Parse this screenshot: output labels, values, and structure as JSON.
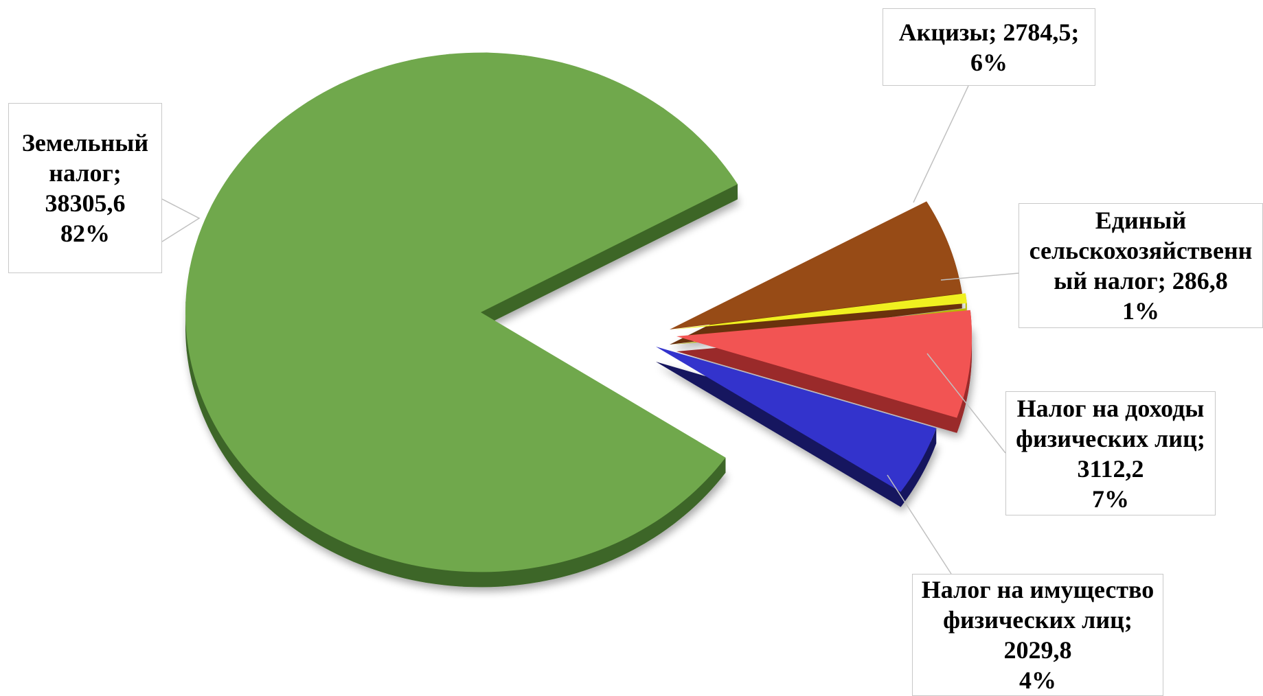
{
  "chart_data": {
    "type": "pie",
    "slices": [
      {
        "category": "Земельный налог",
        "value": 38305.6,
        "percent": 82,
        "color": "#70a84c",
        "color_side": "#3d6628",
        "label_lines": [
          "Земельный",
          "налог;",
          "38305,6",
          "82%"
        ]
      },
      {
        "category": "Акцизы",
        "value": 2784.5,
        "percent": 6,
        "color": "#974b16",
        "color_side": "#6b330d",
        "label_lines": [
          "Акцизы; 2784,5;",
          "6%"
        ]
      },
      {
        "category": "Единый сельскохозяйственный налог",
        "value": 286.8,
        "percent": 1,
        "color": "#f0f020",
        "color_side": "#b8b800",
        "label_lines": [
          "Единый",
          "сельскохозяйственн",
          "ый налог; 286,8",
          "1%"
        ]
      },
      {
        "category": "Налог на доходы физических лиц",
        "value": 3112.2,
        "percent": 7,
        "color": "#f25453",
        "color_side": "#9a2a2a",
        "label_lines": [
          "Налог на доходы",
          "физических лиц;",
          "3112,2",
          "7%"
        ]
      },
      {
        "category": "Налог на имущество физических лиц",
        "value": 2029.8,
        "percent": 4,
        "color": "#3333cc",
        "color_side": "#15155e",
        "label_lines": [
          "Налог на имущество",
          "физических лиц;",
          "2029,8",
          "4%"
        ]
      }
    ],
    "legend": "none",
    "style": "3D exploded pie with callout labels"
  }
}
